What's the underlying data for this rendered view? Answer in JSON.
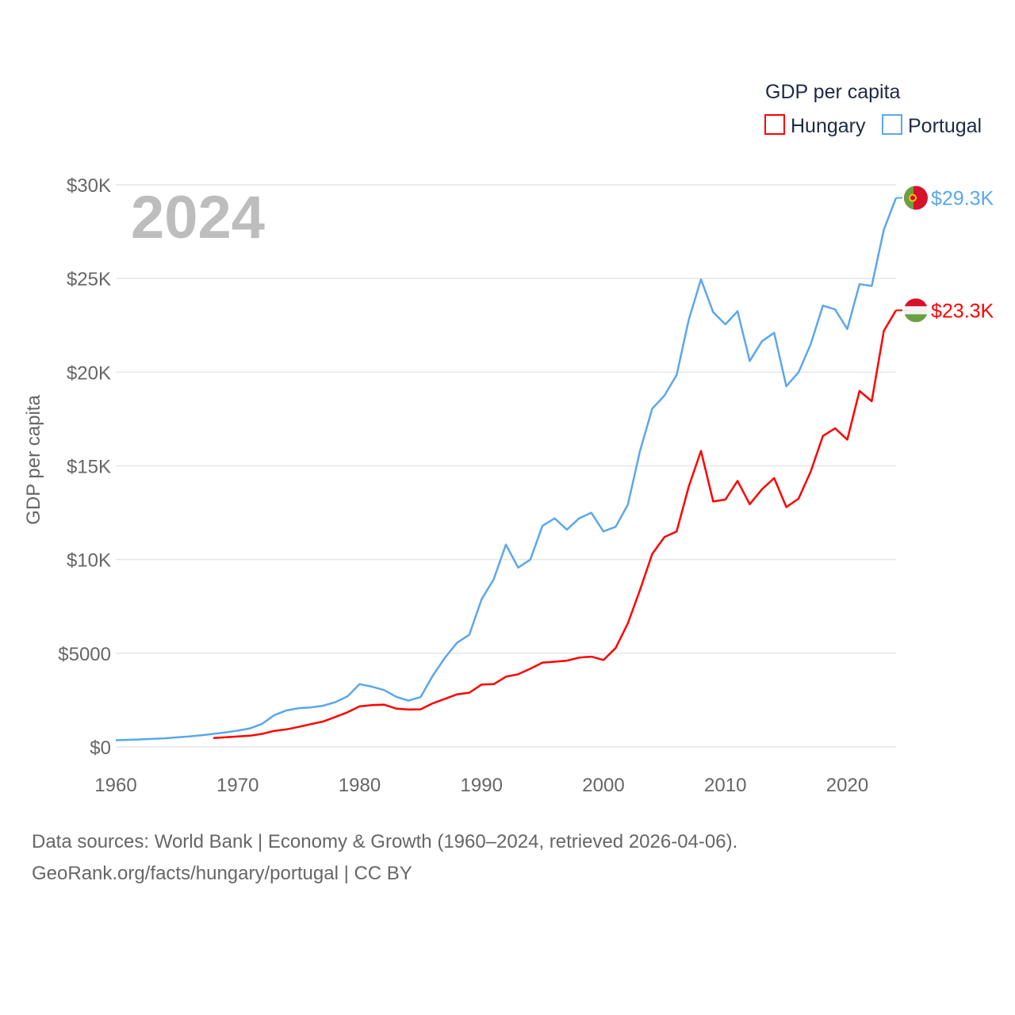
{
  "chart_data": {
    "type": "line",
    "title": "GDP per capita",
    "year_label": "2024",
    "xlabel": "",
    "ylabel": "GDP per capita",
    "xlim": [
      1960,
      2024
    ],
    "ylim": [
      0,
      30000
    ],
    "grid": true,
    "legend_placement": "top-right",
    "x_ticks": [
      1960,
      1970,
      1980,
      1990,
      2000,
      2010,
      2020
    ],
    "x_tick_labels": [
      "1960",
      "1970",
      "1980",
      "1990",
      "2000",
      "2010",
      "2020"
    ],
    "y_ticks": [
      0,
      5000,
      10000,
      15000,
      20000,
      25000,
      30000
    ],
    "y_tick_labels": [
      "$0",
      "$5000",
      "$10K",
      "$15K",
      "$20K",
      "$25K",
      "$30K"
    ],
    "series": [
      {
        "name": "Hungary",
        "color": "#ff0000",
        "end_label": "$23.3K",
        "flag": "hungary-flag",
        "start_year": 1968,
        "values": [
          480,
          520,
          560,
          600,
          700,
          860,
          940,
          1070,
          1220,
          1360,
          1600,
          1850,
          2170,
          2230,
          2260,
          2050,
          2000,
          2010,
          2330,
          2570,
          2810,
          2900,
          3330,
          3350,
          3750,
          3880,
          4180,
          4500,
          4550,
          4610,
          4770,
          4820,
          4640,
          5280,
          6600,
          8380,
          10300,
          11200,
          11500,
          13900,
          15800,
          13100,
          13200,
          14200,
          12950,
          13750,
          14350,
          12800,
          13250,
          14700,
          16600,
          17000,
          16400,
          19000,
          18450,
          22200,
          23300
        ]
      },
      {
        "name": "Portugal",
        "color": "#5ba7ec",
        "end_label": "$29.3K",
        "flag": "portugal-flag",
        "start_year": 1960,
        "values": [
          360,
          380,
          400,
          430,
          460,
          510,
          560,
          620,
          700,
          780,
          870,
          990,
          1230,
          1700,
          1950,
          2070,
          2110,
          2200,
          2390,
          2700,
          3350,
          3220,
          3040,
          2680,
          2470,
          2660,
          3810,
          4760,
          5570,
          5990,
          7880,
          8950,
          10800,
          9570,
          10000,
          11800,
          12200,
          11600,
          12200,
          12500,
          11500,
          11750,
          12930,
          15800,
          18050,
          18750,
          19850,
          22800,
          24950,
          23200,
          22550,
          23250,
          20600,
          21650,
          22100,
          19250,
          19990,
          21500,
          23550,
          23350,
          22300,
          24700,
          24600,
          27600,
          29300
        ]
      }
    ]
  },
  "footer": {
    "line1": "Data sources: World Bank | Economy & Growth (1960–2024, retrieved 2026-04-06).",
    "line2": "GeoRank.org/facts/hungary/portugal | CC BY"
  }
}
